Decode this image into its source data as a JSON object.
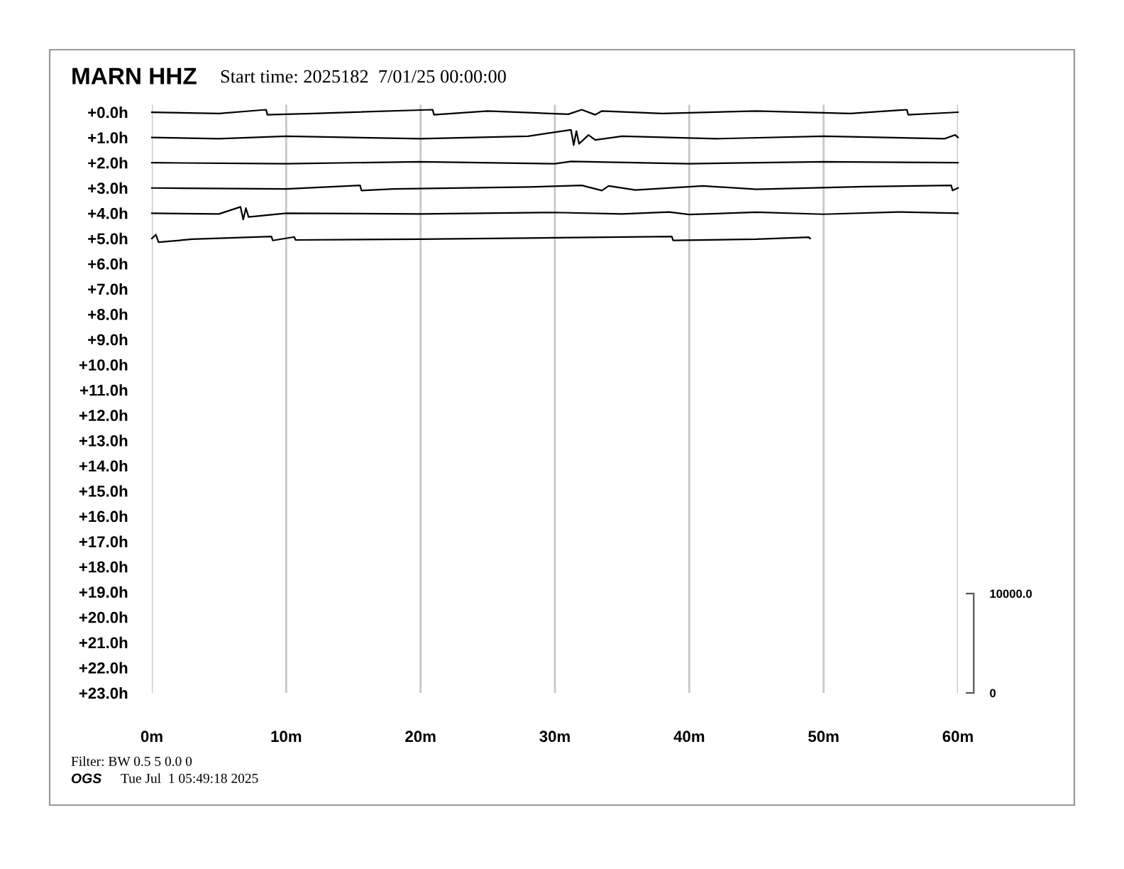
{
  "chart_data": {
    "type": "line",
    "title": "MARN HHZ",
    "subtitle": "Start time: 2025182  7/01/25 00:00:00",
    "annotations": [
      "Filter: BW 0.5 5 0.0 0",
      "OGS",
      "Tue Jul  1 05:49:18 2025"
    ],
    "xlim": [
      0,
      60
    ],
    "xticks": [
      {
        "value": 0,
        "label": "0m"
      },
      {
        "value": 10,
        "label": "10m"
      },
      {
        "value": 20,
        "label": "20m"
      },
      {
        "value": 30,
        "label": "30m"
      },
      {
        "value": 40,
        "label": "40m"
      },
      {
        "value": 50,
        "label": "50m"
      },
      {
        "value": 60,
        "label": "60m"
      }
    ],
    "ylim": [
      23,
      -0.3
    ],
    "yticks": [
      {
        "value": 0,
        "label": "+0.0h"
      },
      {
        "value": 1,
        "label": "+1.0h"
      },
      {
        "value": 2,
        "label": "+2.0h"
      },
      {
        "value": 3,
        "label": "+3.0h"
      },
      {
        "value": 4,
        "label": "+4.0h"
      },
      {
        "value": 5,
        "label": "+5.0h"
      },
      {
        "value": 6,
        "label": "+6.0h"
      },
      {
        "value": 7,
        "label": "+7.0h"
      },
      {
        "value": 8,
        "label": "+8.0h"
      },
      {
        "value": 9,
        "label": "+9.0h"
      },
      {
        "value": 10,
        "label": "+10.0h"
      },
      {
        "value": 11,
        "label": "+11.0h"
      },
      {
        "value": 12,
        "label": "+12.0h"
      },
      {
        "value": 13,
        "label": "+13.0h"
      },
      {
        "value": 14,
        "label": "+14.0h"
      },
      {
        "value": 15,
        "label": "+15.0h"
      },
      {
        "value": 16,
        "label": "+16.0h"
      },
      {
        "value": 17,
        "label": "+17.0h"
      },
      {
        "value": 18,
        "label": "+18.0h"
      },
      {
        "value": 19,
        "label": "+19.0h"
      },
      {
        "value": 20,
        "label": "+20.0h"
      },
      {
        "value": 21,
        "label": "+21.0h"
      },
      {
        "value": 22,
        "label": "+22.0h"
      },
      {
        "value": 23,
        "label": "+23.0h"
      }
    ],
    "y2lim": [
      0,
      59200
    ],
    "y2ticks": [
      0,
      {
        "value": 10000,
        "label": "10000.0"
      }
    ],
    "grid": "x",
    "legend": false,
    "marker": "none",
    "line_style": "solid",
    "series": [
      {
        "color": "#000000",
        "x": [
          0,
          5,
          8.5,
          8.6,
          12,
          20.9,
          21,
          25,
          31,
          32,
          33,
          33.5,
          38,
          45,
          52,
          56.2,
          56.3,
          60
        ],
        "values": [
          0,
          0.05,
          -0.1,
          0.1,
          0.05,
          -0.1,
          0.1,
          -0.05,
          0.08,
          -0.1,
          0.1,
          -0.05,
          0.05,
          -0.05,
          0.05,
          -0.1,
          0.1,
          0
        ]
      },
      {
        "color": "#000000",
        "x": [
          0,
          5,
          10,
          20,
          28,
          31.2,
          31.4,
          31.6,
          31.8,
          32.5,
          33,
          35,
          42,
          50,
          59,
          59.8,
          60
        ],
        "values": [
          1,
          1.05,
          0.95,
          1.05,
          0.95,
          0.7,
          1.3,
          0.75,
          1.25,
          0.9,
          1.1,
          0.95,
          1.05,
          0.95,
          1.05,
          0.9,
          1
        ]
      },
      {
        "color": "#000000",
        "x": [
          0,
          10,
          20,
          30,
          31.2,
          40,
          50,
          60
        ],
        "values": [
          2,
          2.04,
          1.96,
          2.04,
          1.95,
          2.04,
          1.96,
          2
        ]
      },
      {
        "color": "#000000",
        "x": [
          0,
          10,
          15.5,
          15.6,
          18,
          28,
          32,
          33.5,
          34,
          36,
          41,
          45,
          53,
          59.5,
          59.6,
          60
        ],
        "values": [
          3,
          3.04,
          2.9,
          3.1,
          3.04,
          2.96,
          2.9,
          3.1,
          2.92,
          3.08,
          2.92,
          3.05,
          2.95,
          2.9,
          3.1,
          3
        ]
      },
      {
        "color": "#000000",
        "x": [
          0,
          5,
          6.6,
          6.8,
          7,
          7.2,
          10,
          20,
          30,
          35,
          38.5,
          40,
          45,
          50,
          55.5,
          60
        ],
        "values": [
          4,
          4.03,
          3.75,
          4.25,
          3.8,
          4.15,
          4,
          4.03,
          3.97,
          4.03,
          3.95,
          4.05,
          3.96,
          4.04,
          3.95,
          4
        ]
      },
      {
        "color": "#000000",
        "x": [
          0,
          0.3,
          0.5,
          3,
          8.9,
          9,
          10.6,
          10.7,
          20,
          30,
          38.7,
          38.8,
          45,
          48.9,
          49
        ],
        "values": [
          5,
          4.85,
          5.15,
          5.03,
          4.92,
          5.08,
          4.94,
          5.06,
          5.03,
          4.97,
          4.92,
          5.08,
          5.03,
          4.95,
          5
        ]
      }
    ]
  }
}
